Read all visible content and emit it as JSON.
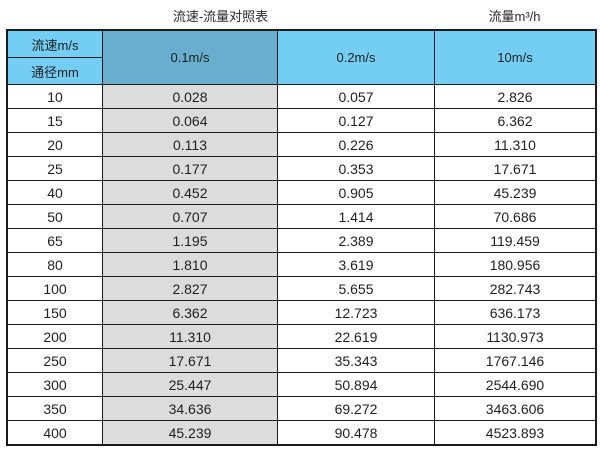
{
  "titles": {
    "left": "流速-流量对照表",
    "right": "流量m³/h"
  },
  "header": {
    "velocity_label": "流速m/s",
    "diameter_label": "通径mm",
    "col_01": "0.1m/s",
    "col_02": "0.2m/s",
    "col_10": "10m/s"
  },
  "colors": {
    "header_light_blue": "#74CEF4",
    "header_dark_blue": "#67AECF",
    "gray_column": "#DCDCDC",
    "border": "#1B1B1B",
    "text": "#1F1F1F"
  },
  "chart_data": {
    "type": "table",
    "title": "流速-流量对照表",
    "unit_label": "流量m³/h",
    "columns": [
      "通径mm",
      "0.1m/s",
      "0.2m/s",
      "10m/s"
    ],
    "rows": [
      [
        "10",
        "0.028",
        "0.057",
        "2.826"
      ],
      [
        "15",
        "0.064",
        "0.127",
        "6.362"
      ],
      [
        "20",
        "0.113",
        "0.226",
        "11.310"
      ],
      [
        "25",
        "0.177",
        "0.353",
        "17.671"
      ],
      [
        "40",
        "0.452",
        "0.905",
        "45.239"
      ],
      [
        "50",
        "0.707",
        "1.414",
        "70.686"
      ],
      [
        "65",
        "1.195",
        "2.389",
        "119.459"
      ],
      [
        "80",
        "1.810",
        "3.619",
        "180.956"
      ],
      [
        "100",
        "2.827",
        "5.655",
        "282.743"
      ],
      [
        "150",
        "6.362",
        "12.723",
        "636.173"
      ],
      [
        "200",
        "11.310",
        "22.619",
        "1130.973"
      ],
      [
        "250",
        "17.671",
        "35.343",
        "1767.146"
      ],
      [
        "300",
        "25.447",
        "50.894",
        "2544.690"
      ],
      [
        "350",
        "34.636",
        "69.272",
        "3463.606"
      ],
      [
        "400",
        "45.239",
        "90.478",
        "4523.893"
      ]
    ]
  }
}
